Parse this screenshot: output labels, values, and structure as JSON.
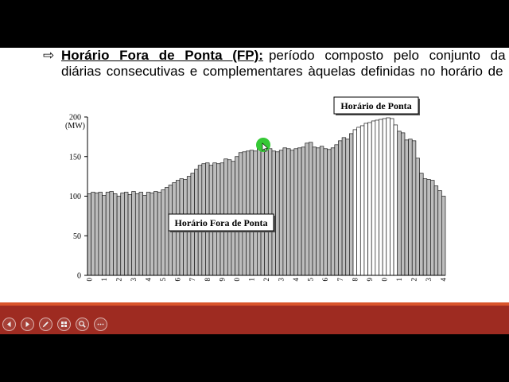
{
  "slide": {
    "bullet_icon": "outlined-right-arrow-icon",
    "bullet_glyph": "⇨",
    "term": "Horário Fora de Ponta (FP):",
    "line1_text": "período composto pelo conjunto da",
    "line2_text": "diárias consecutivas e complementares àquelas definidas no horário de"
  },
  "colors": {
    "letterbox": "#000000",
    "slide_background": "#ffffff",
    "text": "#000000",
    "accent_line": "#d9542b",
    "footer_band": "#9e2b21",
    "bar_fill": "#bdbdbd",
    "bar_outline": "#1a1a1a",
    "peak_bar_fill": "#ffffff",
    "pointer": "#35c935"
  },
  "chart_data": {
    "type": "bar",
    "ylabel": "(MW)",
    "ylim": [
      0,
      200
    ],
    "y_ticks": [
      0,
      50,
      100,
      150,
      200
    ],
    "x_tick_labels": [
      "0",
      "1",
      "2",
      "3",
      "4",
      "5",
      "6",
      "7",
      "8",
      "9",
      "0",
      "1",
      "2",
      "3",
      "4",
      "5",
      "6",
      "7",
      "8",
      "9",
      "0",
      "1",
      "2",
      "3",
      "4"
    ],
    "values": [
      103,
      105,
      104,
      105,
      101,
      105,
      106,
      103,
      100,
      104,
      105,
      102,
      106,
      103,
      105,
      101,
      105,
      104,
      106,
      105,
      108,
      111,
      114,
      117,
      120,
      122,
      121,
      125,
      129,
      134,
      139,
      141,
      142,
      139,
      142,
      141,
      142,
      147,
      146,
      144,
      150,
      155,
      156,
      157,
      158,
      157,
      162,
      164,
      163,
      160,
      157,
      156,
      158,
      161,
      160,
      158,
      160,
      161,
      162,
      167,
      168,
      162,
      161,
      163,
      160,
      159,
      161,
      165,
      170,
      174,
      172,
      179,
      184,
      187,
      189,
      192,
      193,
      195,
      196,
      197,
      198,
      199,
      198,
      190,
      182,
      180,
      171,
      172,
      170,
      148,
      129,
      122,
      121,
      120,
      113,
      107,
      100
    ],
    "highlighted_bar_range": [
      72,
      83
    ],
    "annotations": [
      "Horário de Ponta",
      "Horário Fora de Ponta"
    ],
    "grid": false
  },
  "slideshow_controls": [
    "previous-arrow-icon",
    "next-arrow-icon",
    "pen-icon",
    "slide-grid-icon",
    "zoom-icon",
    "more-icon"
  ]
}
